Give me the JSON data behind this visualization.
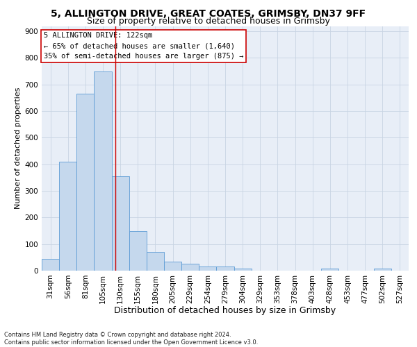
{
  "title_line1": "5, ALLINGTON DRIVE, GREAT COATES, GRIMSBY, DN37 9FF",
  "title_line2": "Size of property relative to detached houses in Grimsby",
  "xlabel": "Distribution of detached houses by size in Grimsby",
  "ylabel": "Number of detached properties",
  "footnote": "Contains HM Land Registry data © Crown copyright and database right 2024.\nContains public sector information licensed under the Open Government Licence v3.0.",
  "bar_labels": [
    "31sqm",
    "56sqm",
    "81sqm",
    "105sqm",
    "130sqm",
    "155sqm",
    "180sqm",
    "205sqm",
    "229sqm",
    "254sqm",
    "279sqm",
    "304sqm",
    "329sqm",
    "353sqm",
    "378sqm",
    "403sqm",
    "428sqm",
    "453sqm",
    "477sqm",
    "502sqm",
    "527sqm"
  ],
  "bar_values": [
    45,
    410,
    665,
    750,
    355,
    148,
    70,
    33,
    26,
    16,
    15,
    9,
    1,
    0,
    0,
    0,
    7,
    0,
    0,
    7,
    0
  ],
  "bar_color": "#c5d8ed",
  "bar_edge_color": "#5b9bd5",
  "grid_color": "#c8d4e3",
  "background_color": "#e8eef7",
  "annotation_box_text": "5 ALLINGTON DRIVE: 122sqm\n← 65% of detached houses are smaller (1,640)\n35% of semi-detached houses are larger (875) →",
  "annotation_box_color": "#ffffff",
  "annotation_box_edge_color": "#cc0000",
  "property_line_x": 3.72,
  "ylim": [
    0,
    920
  ],
  "yticks": [
    0,
    100,
    200,
    300,
    400,
    500,
    600,
    700,
    800,
    900
  ],
  "title_fontsize": 10,
  "subtitle_fontsize": 9,
  "xlabel_fontsize": 9,
  "ylabel_fontsize": 8,
  "tick_fontsize": 7.5,
  "annotation_fontsize": 7.5,
  "footnote_fontsize": 6
}
